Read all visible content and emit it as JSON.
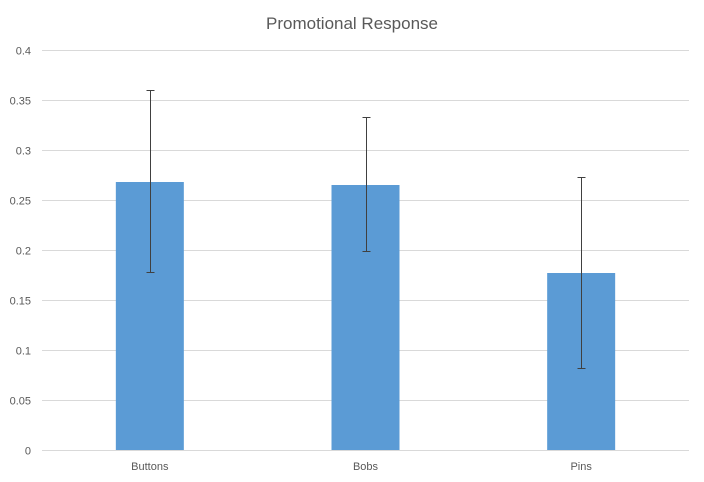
{
  "chart_data": {
    "type": "bar",
    "title": "Promotional Response",
    "xlabel": "",
    "ylabel": "",
    "categories": [
      "Buttons",
      "Bobs",
      "Pins"
    ],
    "values": [
      0.268,
      0.265,
      0.177
    ],
    "error_low": [
      0.178,
      0.199,
      0.082
    ],
    "error_high": [
      0.36,
      0.333,
      0.273
    ],
    "ylim": [
      0,
      0.4
    ],
    "yticks": [
      "0",
      "0.05",
      "0.1",
      "0.15",
      "0.2",
      "0.25",
      "0.3",
      "0.35",
      "0.4"
    ],
    "grid": true,
    "legend": "none",
    "bar_color": "#5b9bd5"
  }
}
